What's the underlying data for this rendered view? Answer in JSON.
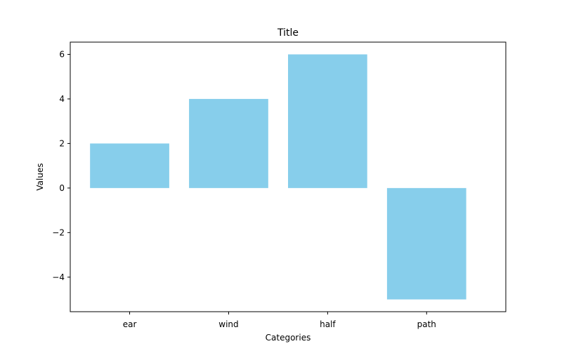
{
  "chart_data": {
    "type": "bar",
    "title": "Title",
    "xlabel": "Categories",
    "ylabel": "Values",
    "categories": [
      "ear",
      "wind",
      "half",
      "path"
    ],
    "values": [
      2,
      4,
      6,
      -5
    ],
    "ylim": [
      -5.55,
      6.55
    ],
    "yticks": [
      -4,
      -2,
      0,
      2,
      4,
      6
    ],
    "ytick_labels": [
      "−4",
      "−2",
      "0",
      "2",
      "4",
      "6"
    ],
    "grid": false,
    "legend": "none",
    "colors": {
      "bar": "#87ceeb",
      "axes": "#000000",
      "background": "#ffffff"
    }
  }
}
